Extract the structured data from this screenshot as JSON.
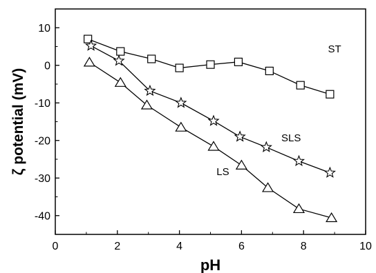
{
  "chart_data": {
    "type": "line",
    "title": "",
    "xlabel": "pH",
    "ylabel": "ζ potential (mV)",
    "xlim": [
      0,
      10
    ],
    "ylim": [
      -45,
      15
    ],
    "xticks": [
      "0",
      "2",
      "4",
      "6",
      "8",
      "10"
    ],
    "yticks": [
      "10",
      "0",
      "-10",
      "-20",
      "-30",
      "-40"
    ],
    "grid": false,
    "legend": "none",
    "series": [
      {
        "name": "ST",
        "marker": "square",
        "x": [
          1.05,
          2.1,
          3.1,
          4.0,
          5.0,
          5.9,
          6.9,
          7.9,
          8.85
        ],
        "y": [
          7.0,
          3.7,
          1.7,
          -0.7,
          0.2,
          0.9,
          -1.5,
          -5.3,
          -7.7
        ]
      },
      {
        "name": "SLS",
        "marker": "star",
        "x": [
          1.15,
          2.05,
          3.05,
          4.05,
          5.1,
          5.95,
          6.8,
          7.85,
          8.85
        ],
        "y": [
          5.2,
          1.2,
          -6.8,
          -10.0,
          -14.8,
          -19.0,
          -21.8,
          -25.5,
          -28.6
        ]
      },
      {
        "name": "LS",
        "marker": "triangle",
        "x": [
          1.1,
          2.1,
          2.95,
          4.05,
          5.1,
          6.0,
          6.85,
          7.85,
          8.9
        ],
        "y": [
          0.8,
          -4.6,
          -10.6,
          -16.5,
          -21.6,
          -26.6,
          -32.6,
          -38.2,
          -40.6
        ]
      }
    ],
    "annotations": [
      {
        "text": "ST",
        "series": "ST"
      },
      {
        "text": "SLS",
        "series": "SLS"
      },
      {
        "text": "LS",
        "series": "LS"
      }
    ]
  }
}
